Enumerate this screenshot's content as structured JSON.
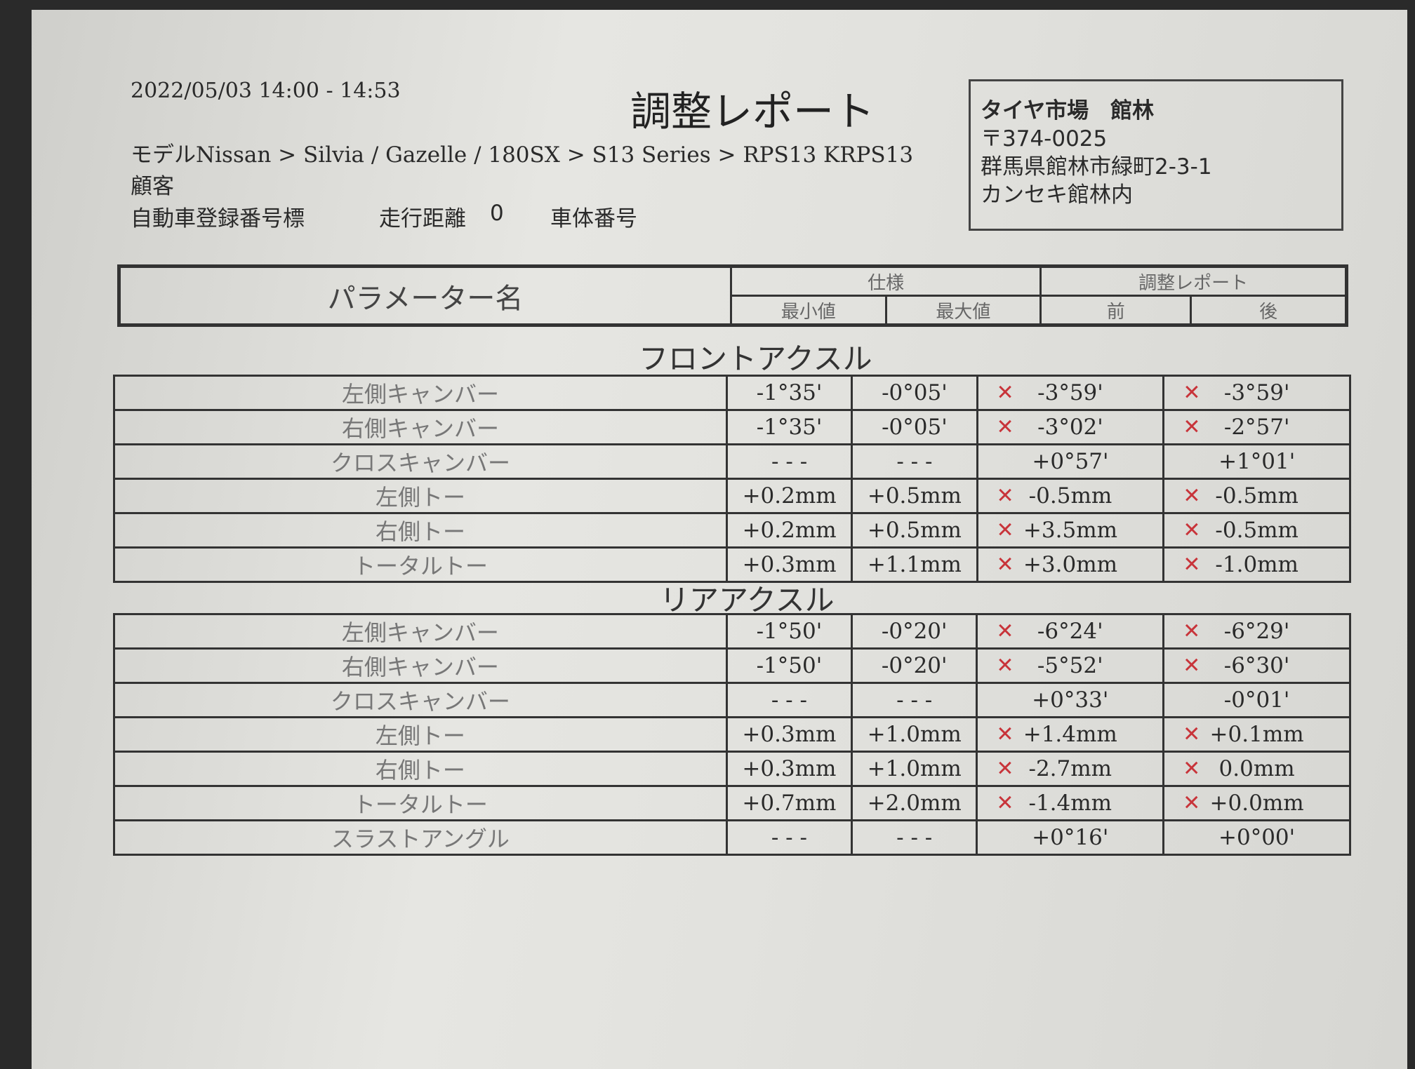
{
  "header": {
    "datetime": "2022/05/03 14:00 - 14:53",
    "title": "調整レポート",
    "model": "モデルNissan > Silvia / Gazelle / 180SX > S13 Series > RPS13 KRPS13",
    "customer_label": "顧客",
    "plate_label": "自動車登録番号標",
    "mileage_label": "走行距離",
    "mileage_value": "0",
    "vin_label": "車体番号"
  },
  "shop": {
    "name": "タイヤ市場　館林",
    "postal": "〒374-0025",
    "address": "群馬県館林市緑町2-3-1",
    "address2": "カンセキ館林内"
  },
  "table_header": {
    "param": "パラメーター名",
    "spec": "仕様",
    "report": "調整レポート",
    "min": "最小値",
    "max": "最大値",
    "before": "前",
    "after": "後"
  },
  "status_colors": {
    "fail": "#c8343a"
  },
  "front": {
    "title": "フロントアクスル",
    "rows": [
      {
        "name": "左側キャンバー",
        "min": "-1°35'",
        "max": "-0°05'",
        "before": "-3°59'",
        "before_x": "✕",
        "after": "-3°59'",
        "after_x": "✕"
      },
      {
        "name": "右側キャンバー",
        "min": "-1°35'",
        "max": "-0°05'",
        "before": "-3°02'",
        "before_x": "✕",
        "after": "-2°57'",
        "after_x": "✕"
      },
      {
        "name": "クロスキャンバー",
        "min": "- - -",
        "max": "- - -",
        "before": "+0°57'",
        "before_x": "",
        "after": "+1°01'",
        "after_x": ""
      },
      {
        "name": "左側トー",
        "min": "+0.2mm",
        "max": "+0.5mm",
        "before": "-0.5mm",
        "before_x": "✕",
        "after": "-0.5mm",
        "after_x": "✕"
      },
      {
        "name": "右側トー",
        "min": "+0.2mm",
        "max": "+0.5mm",
        "before": "+3.5mm",
        "before_x": "✕",
        "after": "-0.5mm",
        "after_x": "✕"
      },
      {
        "name": "トータルトー",
        "min": "+0.3mm",
        "max": "+1.1mm",
        "before": "+3.0mm",
        "before_x": "✕",
        "after": "-1.0mm",
        "after_x": "✕"
      }
    ]
  },
  "rear": {
    "title": "リアアクスル",
    "rows": [
      {
        "name": "左側キャンバー",
        "min": "-1°50'",
        "max": "-0°20'",
        "before": "-6°24'",
        "before_x": "✕",
        "after": "-6°29'",
        "after_x": "✕"
      },
      {
        "name": "右側キャンバー",
        "min": "-1°50'",
        "max": "-0°20'",
        "before": "-5°52'",
        "before_x": "✕",
        "after": "-6°30'",
        "after_x": "✕"
      },
      {
        "name": "クロスキャンバー",
        "min": "- - -",
        "max": "- - -",
        "before": "+0°33'",
        "before_x": "",
        "after": "-0°01'",
        "after_x": ""
      },
      {
        "name": "左側トー",
        "min": "+0.3mm",
        "max": "+1.0mm",
        "before": "+1.4mm",
        "before_x": "✕",
        "after": "+0.1mm",
        "after_x": "✕"
      },
      {
        "name": "右側トー",
        "min": "+0.3mm",
        "max": "+1.0mm",
        "before": "-2.7mm",
        "before_x": "✕",
        "after": "0.0mm",
        "after_x": "✕"
      },
      {
        "name": "トータルトー",
        "min": "+0.7mm",
        "max": "+2.0mm",
        "before": "-1.4mm",
        "before_x": "✕",
        "after": "+0.0mm",
        "after_x": "✕"
      },
      {
        "name": "スラストアングル",
        "min": "- - -",
        "max": "- - -",
        "before": "+0°16'",
        "before_x": "",
        "after": "+0°00'",
        "after_x": ""
      }
    ]
  }
}
